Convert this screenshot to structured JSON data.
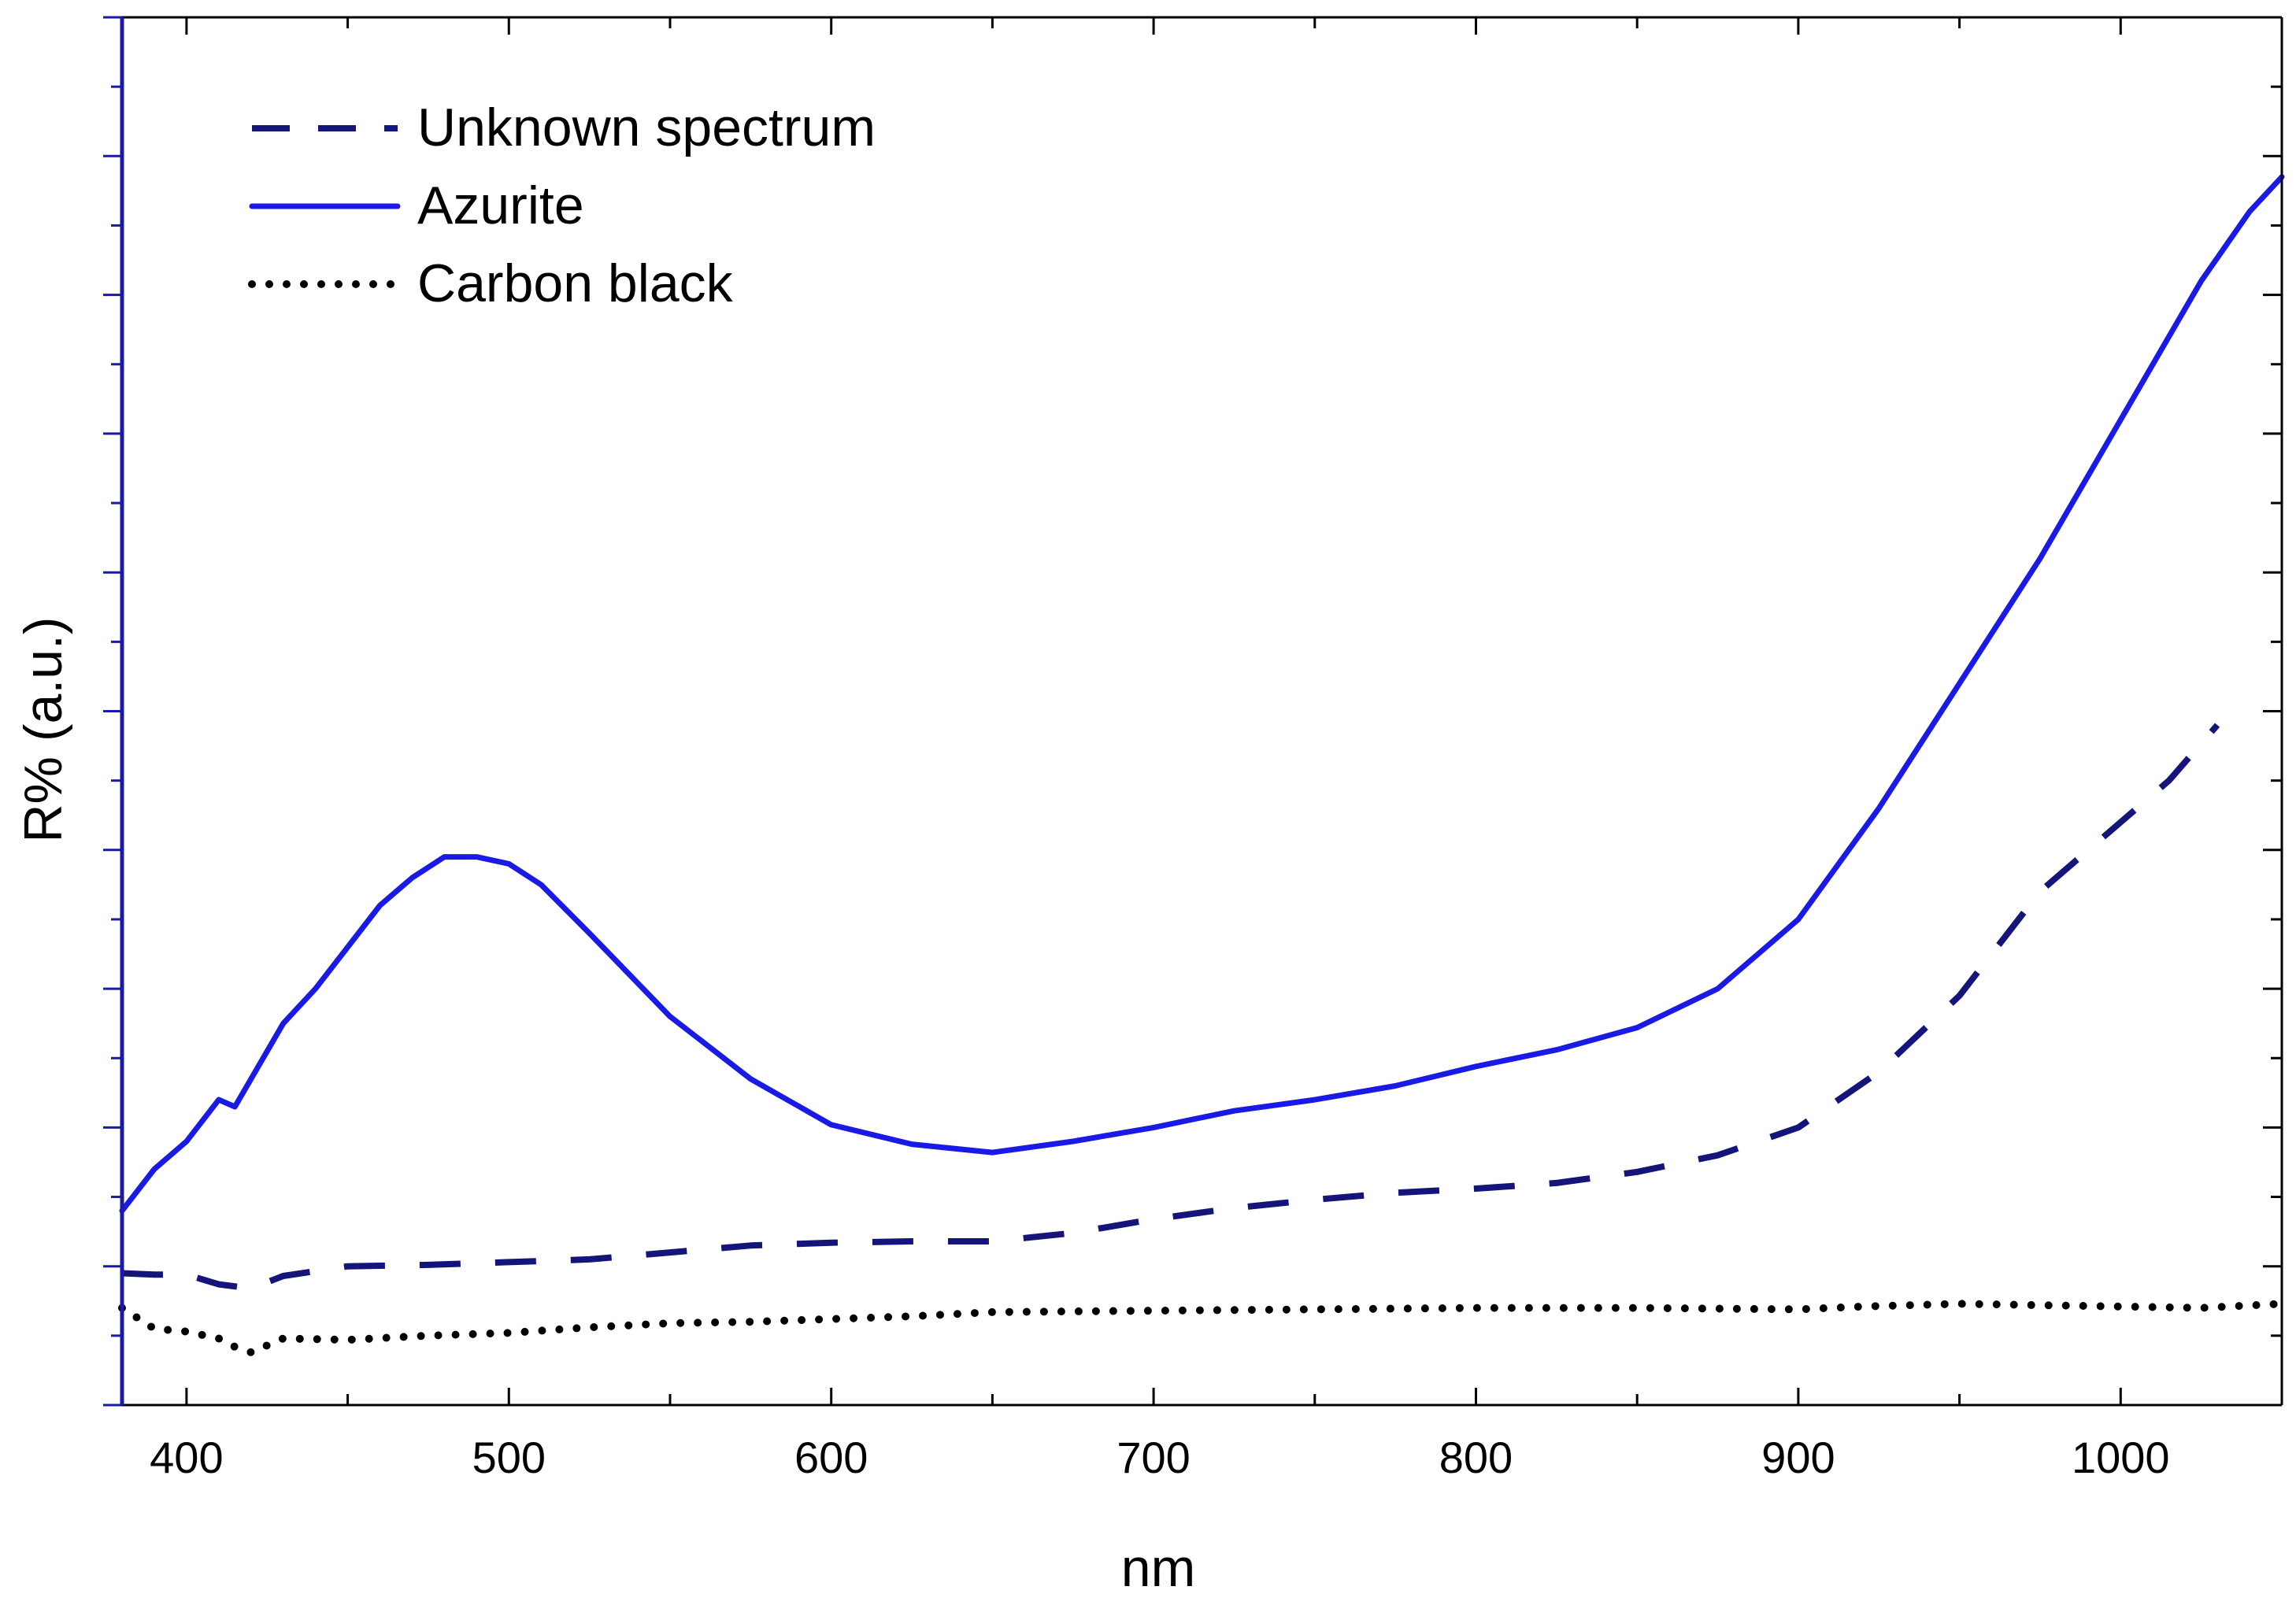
{
  "chart_data": {
    "type": "line",
    "title": "",
    "xlabel": "nm",
    "ylabel": "R% (a.u.)",
    "xlim": [
      380,
      1050
    ],
    "ylim": [
      0,
      100
    ],
    "x_ticks": [
      400,
      500,
      600,
      700,
      800,
      900,
      1000
    ],
    "x_tick_labels": [
      "400",
      "500",
      "600",
      "700",
      "800",
      "900",
      "1000"
    ],
    "y_tick_labels_shown": false,
    "legend_position": "top-left",
    "series": [
      {
        "name": "Unknown spectrum",
        "style": "dashed",
        "color": "#14147A",
        "x": [
          380,
          390,
          400,
          410,
          420,
          430,
          450,
          475,
          500,
          525,
          550,
          575,
          600,
          625,
          650,
          675,
          700,
          725,
          750,
          775,
          800,
          825,
          850,
          875,
          900,
          925,
          950,
          975,
          1000,
          1015,
          1030
        ],
        "y": [
          9.5,
          9.4,
          9.4,
          8.7,
          8.4,
          9.3,
          10.0,
          10.1,
          10.3,
          10.5,
          11.0,
          11.5,
          11.7,
          11.8,
          11.8,
          12.4,
          13.4,
          14.2,
          14.8,
          15.3,
          15.6,
          16.0,
          16.8,
          18.0,
          20.0,
          24.0,
          29.5,
          37.0,
          42.0,
          45.0,
          49.0
        ]
      },
      {
        "name": "Azurite",
        "style": "solid",
        "color": "#1A1AE6",
        "x": [
          380,
          390,
          400,
          410,
          415,
          420,
          430,
          440,
          450,
          460,
          470,
          480,
          490,
          500,
          510,
          525,
          550,
          575,
          600,
          625,
          650,
          675,
          700,
          725,
          750,
          775,
          800,
          825,
          850,
          875,
          900,
          925,
          950,
          975,
          1000,
          1025,
          1040,
          1050
        ],
        "y": [
          14.0,
          17.0,
          19.0,
          22.0,
          21.5,
          23.5,
          27.5,
          30.0,
          33.0,
          36.0,
          38.0,
          39.5,
          39.5,
          39.0,
          37.5,
          34.0,
          28.0,
          23.5,
          20.2,
          18.8,
          18.2,
          19.0,
          20.0,
          21.2,
          22.0,
          23.0,
          24.4,
          25.6,
          27.2,
          30.0,
          35.0,
          43.0,
          52.0,
          61.0,
          71.0,
          81.0,
          86.0,
          88.5
        ]
      },
      {
        "name": "Carbon black",
        "style": "dotted",
        "color": "#000000",
        "x": [
          380,
          390,
          400,
          410,
          415,
          420,
          430,
          450,
          475,
          500,
          525,
          550,
          575,
          600,
          625,
          650,
          700,
          750,
          800,
          850,
          900,
          920,
          950,
          975,
          1000,
          1025,
          1050
        ],
        "y": [
          7.0,
          5.5,
          5.3,
          4.8,
          4.2,
          3.8,
          4.8,
          4.7,
          5.0,
          5.2,
          5.6,
          5.9,
          6.0,
          6.2,
          6.4,
          6.7,
          6.8,
          6.9,
          7.0,
          7.0,
          6.9,
          7.1,
          7.3,
          7.2,
          7.1,
          7.0,
          7.3
        ]
      }
    ]
  }
}
